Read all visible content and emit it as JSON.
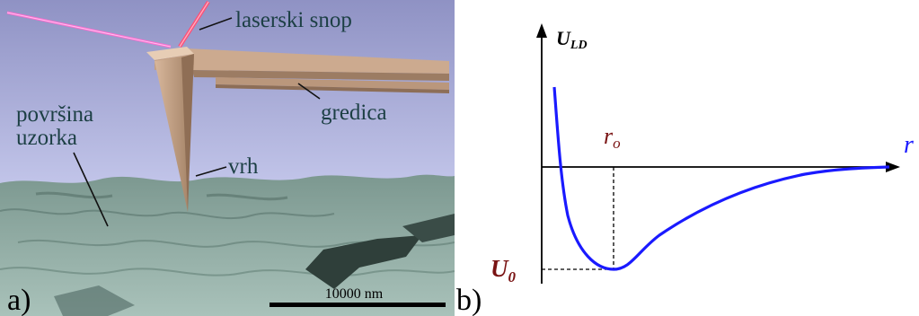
{
  "panel_a": {
    "label": "a)",
    "annotations": {
      "laser": "laserski snop",
      "cantilever": "gredica",
      "surface": "površina\nuzorka",
      "tip": "vrh"
    },
    "scale_bar": "10000 nm"
  },
  "panel_b": {
    "label": "b)",
    "y_axis_label": "U",
    "y_axis_label_sub": "LD",
    "x_axis_label": "r",
    "r0_label": "r",
    "r0_sub": "o",
    "u0_label": "U",
    "u0_sub": "0",
    "curve_color": "#1a1aff",
    "label_color": "#7a1414"
  }
}
